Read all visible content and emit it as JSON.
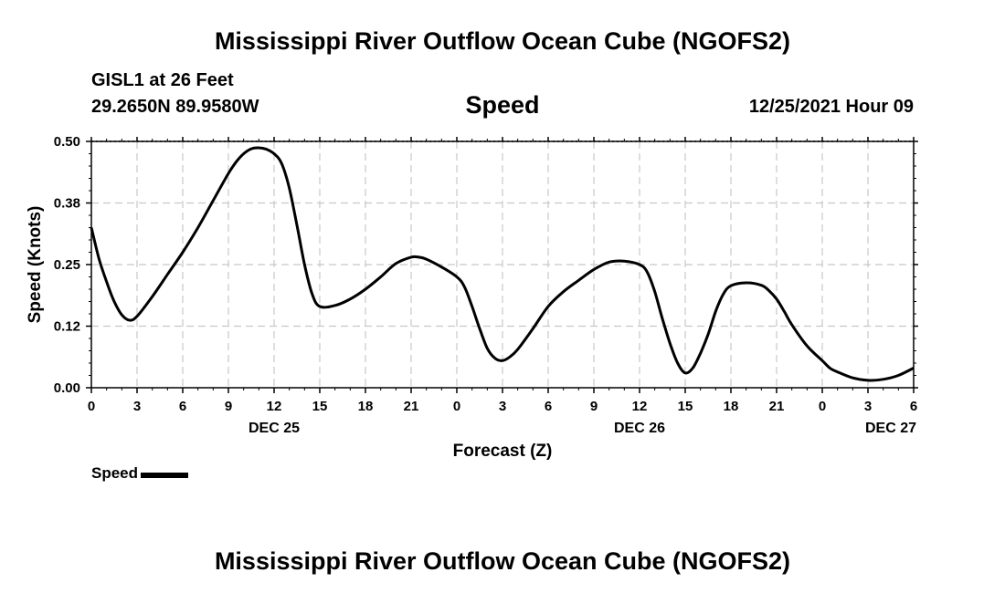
{
  "header": {
    "title": "Mississippi River Outflow Ocean Cube (NGOFS2)",
    "station": "GISL1 at 26 Feet",
    "coords": "29.2650N  89.9580W",
    "panel_title": "Speed",
    "timestamp": "12/25/2021 Hour 09"
  },
  "legend": {
    "label": "Speed",
    "color": "#000000"
  },
  "footer": {
    "title": "Mississippi River Outflow Ocean Cube (NGOFS2)"
  },
  "chart_data": {
    "type": "line",
    "title": "Speed",
    "xlabel": "Forecast (Z)",
    "ylabel": "Speed (Knots)",
    "x_unit": "hours from 2021-12-25 00Z",
    "xlim": [
      0,
      54
    ],
    "ylim": [
      0,
      0.5
    ],
    "grid": true,
    "legend_position": "bottom-left",
    "x_ticks": [
      {
        "x": 0,
        "label": "0"
      },
      {
        "x": 3,
        "label": "3"
      },
      {
        "x": 6,
        "label": "6"
      },
      {
        "x": 9,
        "label": "9"
      },
      {
        "x": 12,
        "label": "12"
      },
      {
        "x": 15,
        "label": "15"
      },
      {
        "x": 18,
        "label": "18"
      },
      {
        "x": 21,
        "label": "21"
      },
      {
        "x": 24,
        "label": "0"
      },
      {
        "x": 27,
        "label": "3"
      },
      {
        "x": 30,
        "label": "6"
      },
      {
        "x": 33,
        "label": "9"
      },
      {
        "x": 36,
        "label": "12"
      },
      {
        "x": 39,
        "label": "15"
      },
      {
        "x": 42,
        "label": "18"
      },
      {
        "x": 45,
        "label": "21"
      },
      {
        "x": 48,
        "label": "0"
      },
      {
        "x": 51,
        "label": "3"
      },
      {
        "x": 54,
        "label": "6"
      }
    ],
    "date_labels": [
      {
        "x": 12,
        "label": "DEC 25"
      },
      {
        "x": 36,
        "label": "DEC 26"
      },
      {
        "x": 52.5,
        "label": "DEC 27"
      }
    ],
    "y_ticks": [
      {
        "y": 0.0,
        "label": "0.00"
      },
      {
        "y": 0.125,
        "label": "0.12"
      },
      {
        "y": 0.25,
        "label": "0.25"
      },
      {
        "y": 0.375,
        "label": "0.38"
      },
      {
        "y": 0.5,
        "label": "0.50"
      }
    ],
    "series": [
      {
        "name": "Speed",
        "color": "#000000",
        "x": [
          0,
          0.5,
          1,
          1.5,
          2,
          2.5,
          3,
          4,
          5,
          6,
          7,
          8,
          9,
          9.5,
          10,
          10.5,
          11,
          11.5,
          12,
          12.5,
          13,
          13.5,
          14,
          14.5,
          15,
          16,
          17,
          18,
          19,
          20,
          21,
          21.5,
          22,
          23,
          24,
          24.5,
          25,
          25.5,
          26,
          26.5,
          27,
          27.5,
          28,
          29,
          30,
          31,
          32,
          33,
          34,
          35,
          36,
          36.5,
          37,
          37.5,
          38,
          38.5,
          39,
          39.5,
          40,
          40.5,
          41,
          41.5,
          42,
          43,
          44,
          44.5,
          45,
          45.5,
          46,
          47,
          48,
          48.5,
          49,
          50,
          51,
          52,
          53,
          54
        ],
        "y": [
          0.325,
          0.262,
          0.215,
          0.175,
          0.148,
          0.137,
          0.145,
          0.185,
          0.23,
          0.275,
          0.325,
          0.38,
          0.435,
          0.458,
          0.475,
          0.485,
          0.487,
          0.484,
          0.475,
          0.455,
          0.405,
          0.33,
          0.25,
          0.19,
          0.165,
          0.167,
          0.18,
          0.2,
          0.225,
          0.252,
          0.265,
          0.265,
          0.261,
          0.245,
          0.225,
          0.205,
          0.165,
          0.12,
          0.08,
          0.06,
          0.055,
          0.063,
          0.078,
          0.12,
          0.165,
          0.195,
          0.218,
          0.24,
          0.255,
          0.257,
          0.25,
          0.235,
          0.195,
          0.14,
          0.09,
          0.05,
          0.03,
          0.04,
          0.07,
          0.108,
          0.155,
          0.19,
          0.207,
          0.213,
          0.208,
          0.197,
          0.18,
          0.155,
          0.128,
          0.085,
          0.055,
          0.04,
          0.032,
          0.02,
          0.015,
          0.017,
          0.025,
          0.04
        ]
      }
    ]
  }
}
